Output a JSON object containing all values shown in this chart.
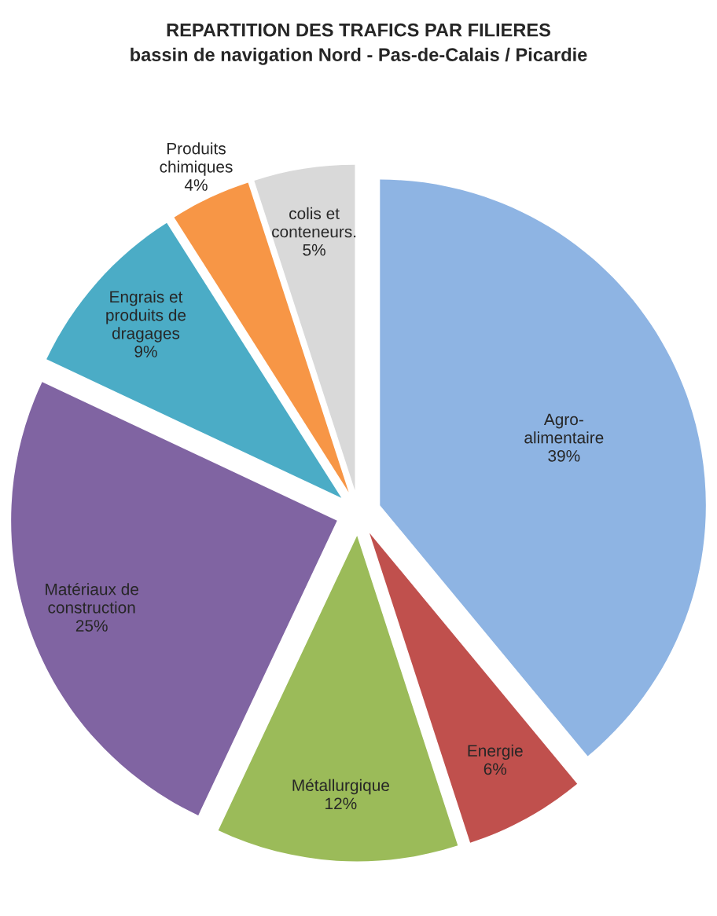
{
  "chart_data": {
    "type": "pie",
    "title": "REPARTITION DES TRAFICS PAR FILIERES",
    "subtitle": "bassin de navigation Nord - Pas-de-Calais / Picardie",
    "categories": [
      "Agro-\nalimentaire",
      "Energie",
      "Métallurgique",
      "Matériaux de\nconstruction",
      "Engrais et\nproduits de\ndragages",
      "Produits\nchimiques",
      "colis et\nconteneurs."
    ],
    "values": [
      39,
      6,
      12,
      25,
      9,
      4,
      5
    ],
    "value_labels": [
      "39%",
      "6%",
      "12%",
      "25%",
      "9%",
      "4%",
      "5%"
    ],
    "colors": [
      "#8eb4e3",
      "#c0504d",
      "#9bbb59",
      "#8064a2",
      "#4bacc6",
      "#f79646",
      "#d9d9d9"
    ],
    "legend": false
  }
}
